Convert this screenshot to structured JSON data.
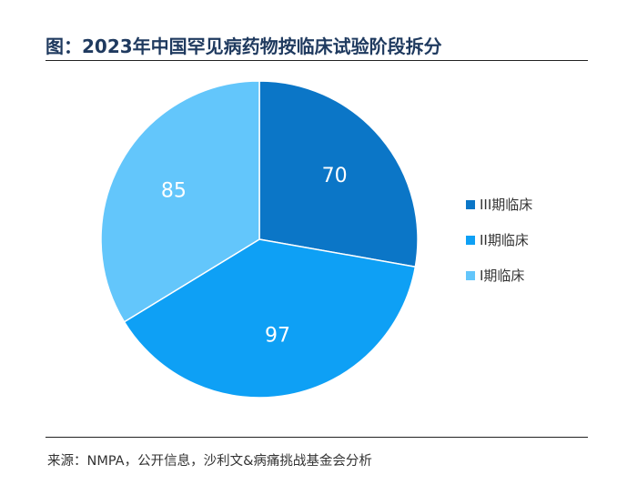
{
  "header": {
    "title": "图：2023年中国罕见病药物按临床试验阶段拆分"
  },
  "footer": {
    "source": "来源：NMPA，公开信息，沙利文&病痛挑战基金会分析"
  },
  "chart_data": {
    "type": "pie",
    "title": "图：2023年中国罕见病药物按临床试验阶段拆分",
    "categories": [
      "III期临床",
      "II期临床",
      "I期临床"
    ],
    "values": [
      70,
      97,
      85
    ],
    "colors": [
      "#0b76c7",
      "#0ea0f5",
      "#63c6fb"
    ],
    "legend_position": "right",
    "start": "top",
    "direction": "clockwise"
  }
}
